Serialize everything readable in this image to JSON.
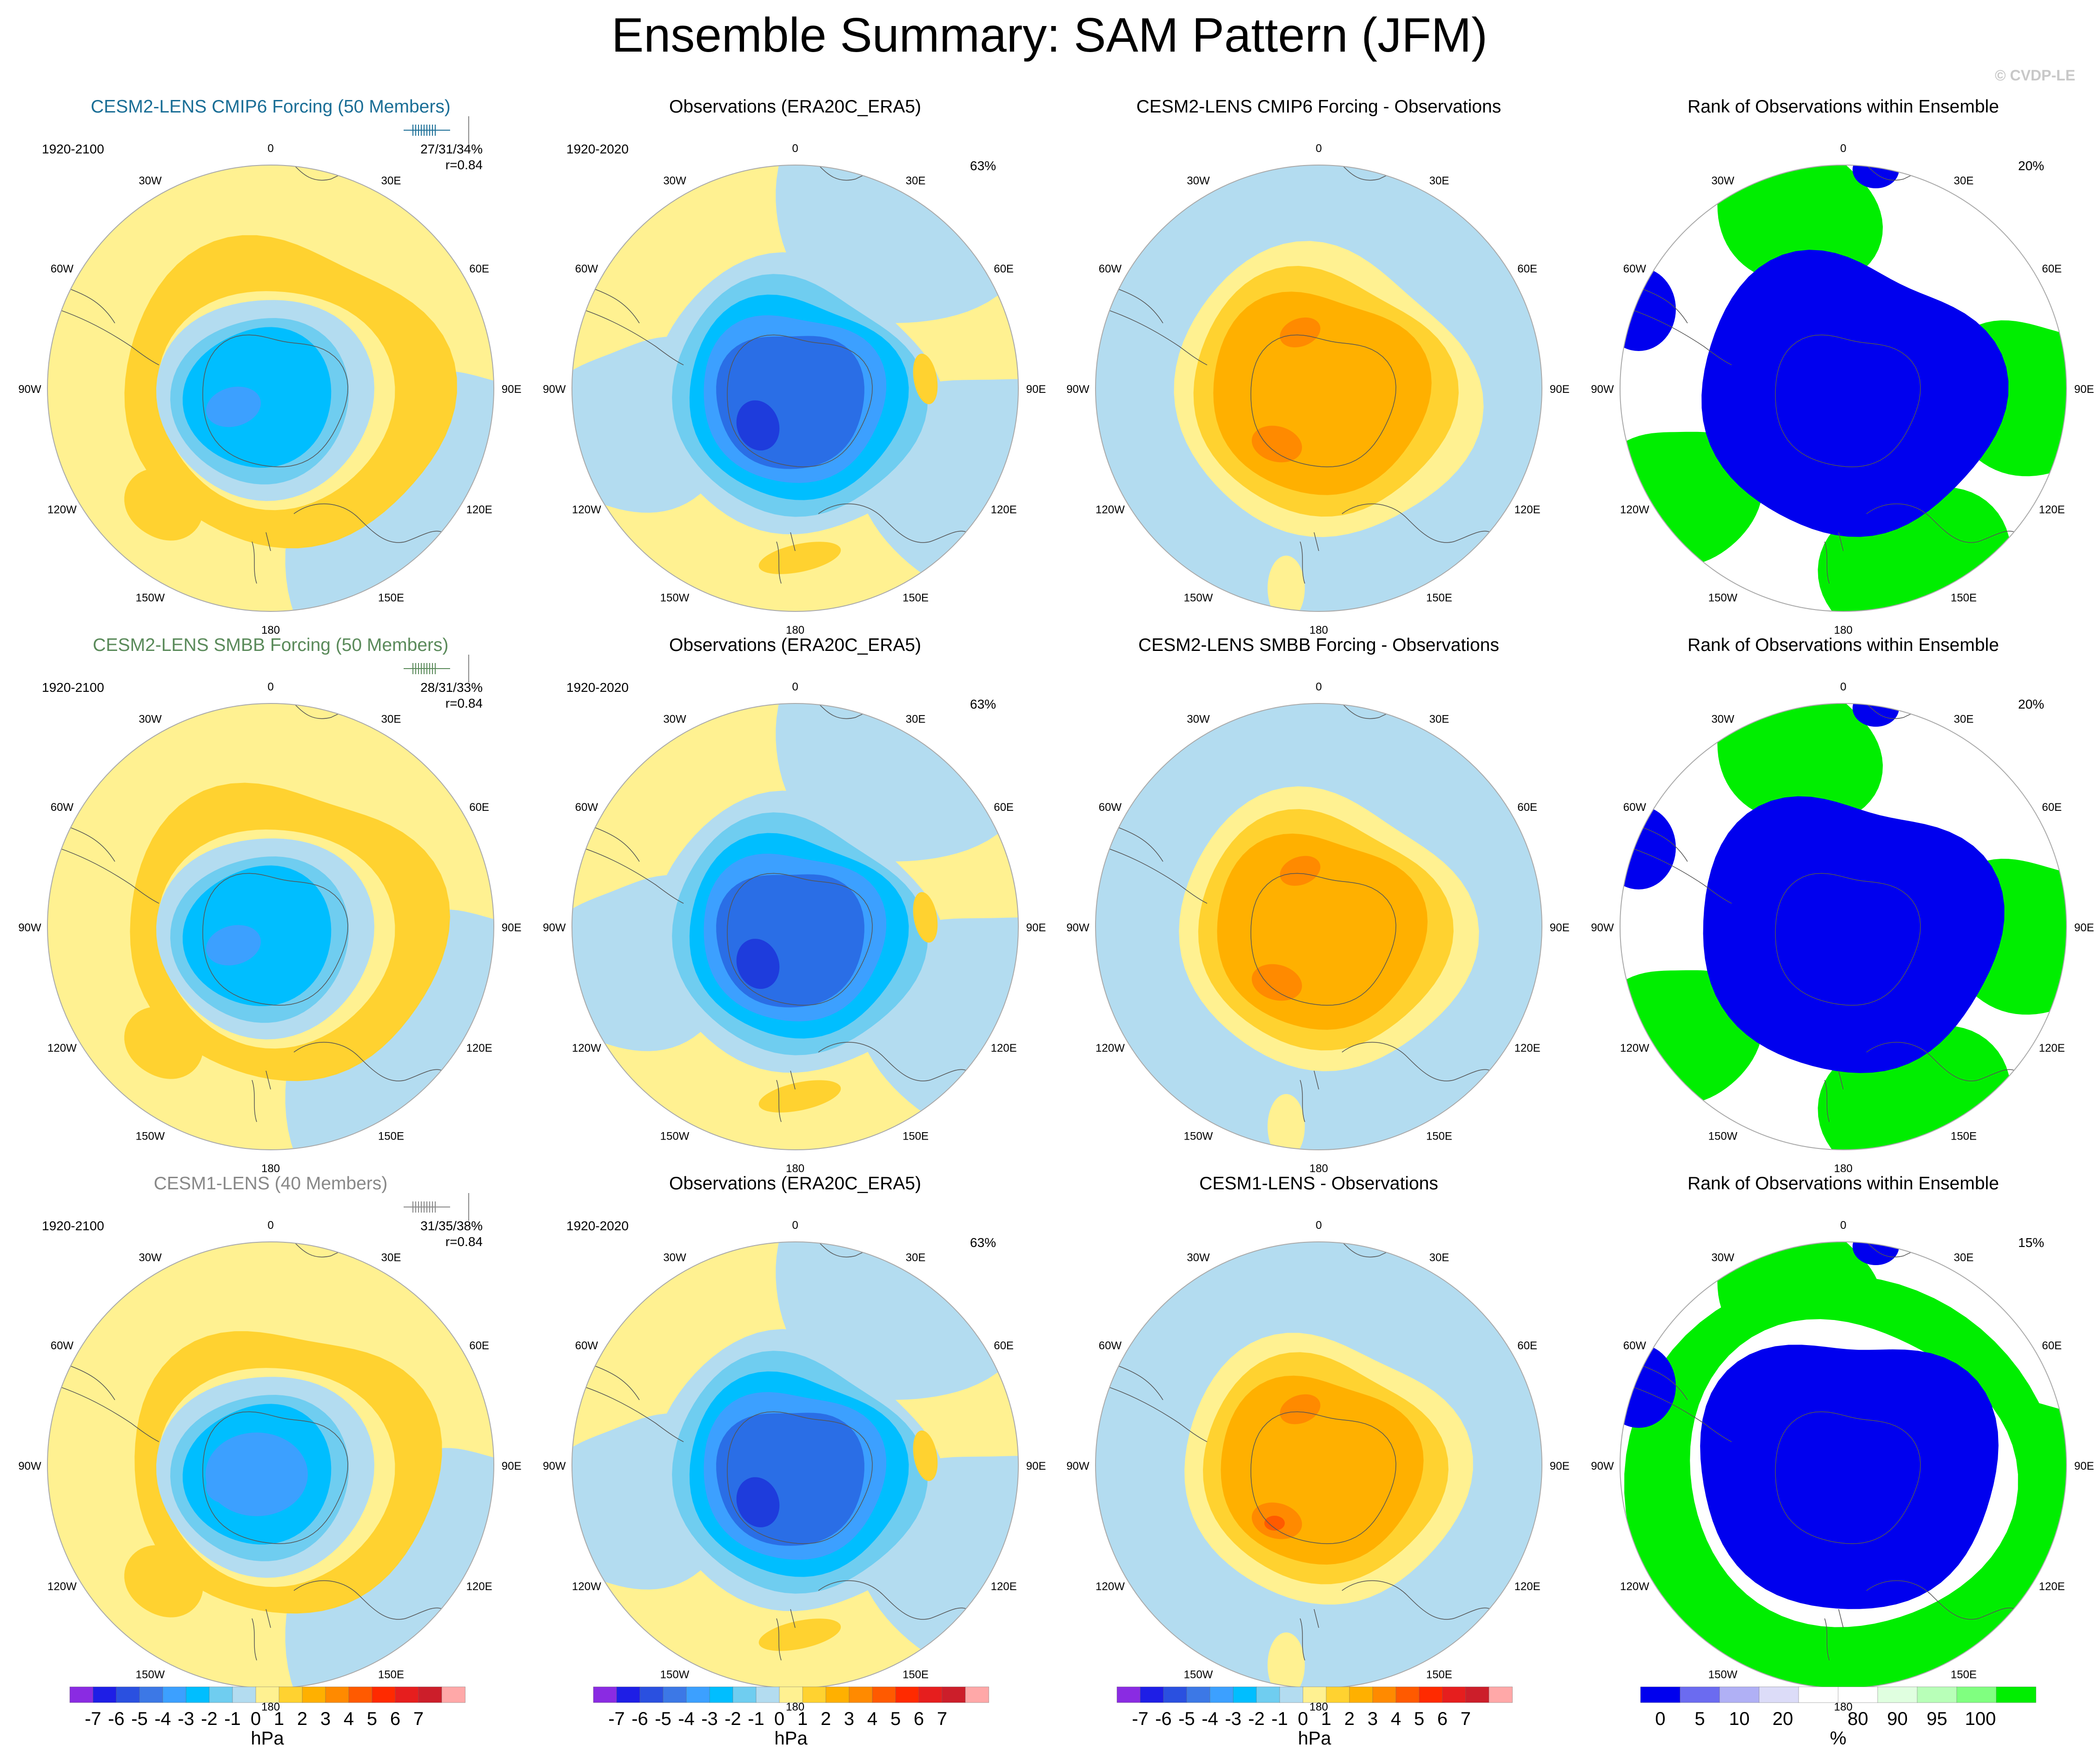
{
  "page": {
    "title": "Ensemble Summary: SAM Pattern (JFM)",
    "watermark": "© CVDP-LE"
  },
  "colors": {
    "ocean_neg1": "#b3dcf0",
    "pos1": "#fff191",
    "pos2": "#ffd230",
    "pos3": "#ffb000",
    "pos4": "#ff8a00",
    "pos5": "#ff5a00",
    "neg2": "#6fcdf0",
    "neg3": "#00beff",
    "neg4": "#3ca0ff",
    "neg5": "#2a6ee6",
    "neg6": "#1e3cdc",
    "rank_blue": "#0000ee",
    "rank_green": "#00ee00",
    "rank_white": "#ffffff",
    "coast": "#555555"
  },
  "meridian_labels": [
    "0",
    "30E",
    "60E",
    "90E",
    "120E",
    "150E",
    "180",
    "150W",
    "120W",
    "90W",
    "60W",
    "30W"
  ],
  "rows": [
    {
      "model": {
        "title": "CESM2-LENS CMIP6 Forcing (50 Members)",
        "title_color": "#1a6e96",
        "period": "1920-2100",
        "stats": "27/31/34%",
        "corr": "r=0.84",
        "tick_color": "#1a6e96"
      },
      "obs": {
        "title": "Observations (ERA20C_ERA5)",
        "period": "1920-2020",
        "pct": "63%"
      },
      "diff": {
        "title": "CESM2-LENS CMIP6 Forcing - Observations"
      },
      "rank": {
        "title": "Rank of Observations within Ensemble",
        "pct": "20%"
      }
    },
    {
      "model": {
        "title": "CESM2-LENS SMBB Forcing (50 Members)",
        "title_color": "#5a8a5a",
        "period": "1920-2100",
        "stats": "28/31/33%",
        "corr": "r=0.84",
        "tick_color": "#5a8a5a"
      },
      "obs": {
        "title": "Observations (ERA20C_ERA5)",
        "period": "1920-2020",
        "pct": "63%"
      },
      "diff": {
        "title": "CESM2-LENS SMBB Forcing - Observations"
      },
      "rank": {
        "title": "Rank of Observations within Ensemble",
        "pct": "20%"
      }
    },
    {
      "model": {
        "title": "CESM1-LENS (40 Members)",
        "title_color": "#888888",
        "period": "1920-2100",
        "stats": "31/35/38%",
        "corr": "r=0.84",
        "tick_color": "#888888"
      },
      "obs": {
        "title": "Observations (ERA20C_ERA5)",
        "period": "1920-2020",
        "pct": "63%"
      },
      "diff": {
        "title": "CESM1-LENS - Observations"
      },
      "rank": {
        "title": "Rank of Observations within Ensemble",
        "pct": "15%"
      }
    }
  ],
  "chart_data": {
    "type": "heatmap",
    "title": "Ensemble Summary: SAM Pattern (JFM)",
    "projection": "south polar stereographic",
    "variable": "sea level pressure regression pattern",
    "colorbars": [
      {
        "name": "hPa scale",
        "units": "hPa",
        "labels": [
          "-7",
          "-6",
          "-5",
          "-4",
          "-3",
          "-2",
          "-1",
          "0",
          "1",
          "2",
          "3",
          "4",
          "5",
          "6",
          "7"
        ],
        "colors": [
          "#8a2be2",
          "#1e1ee6",
          "#2a50e0",
          "#3c78e6",
          "#3ca0ff",
          "#00beff",
          "#6fcdf0",
          "#b3dcf0",
          "#fff191",
          "#ffd230",
          "#ffb000",
          "#ff8a00",
          "#ff5a00",
          "#ff2a00",
          "#e61e1e",
          "#cc1e2a",
          "#ffa8a8"
        ]
      },
      {
        "name": "rank scale",
        "units": "%",
        "labels": [
          "0",
          "5",
          "10",
          "20",
          "80",
          "90",
          "95",
          "100"
        ],
        "colors": [
          "#0000ee",
          "#6b6bf0",
          "#b0b0f5",
          "#dcdcf8",
          "#ffffff",
          "#ffffff",
          "#e0ffe0",
          "#b8ffb8",
          "#80ff80",
          "#00ee00"
        ]
      }
    ]
  }
}
